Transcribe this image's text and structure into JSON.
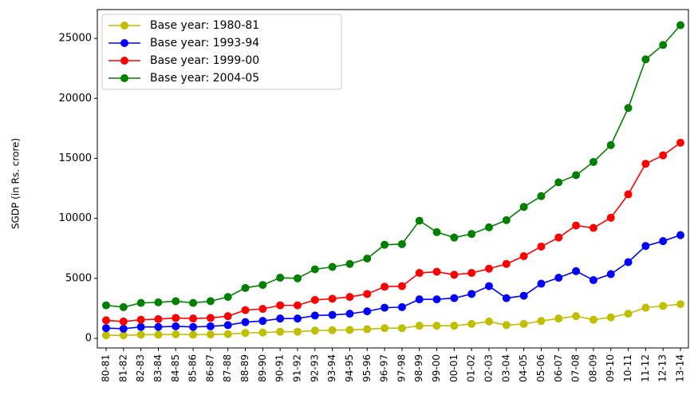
{
  "chart_data": {
    "type": "line",
    "ylabel": "SGDP (in Rs. crore)",
    "categories": [
      "80-81",
      "81-82",
      "82-83",
      "83-84",
      "84-85",
      "85-86",
      "86-87",
      "87-88",
      "88-89",
      "89-90",
      "90-91",
      "91-92",
      "92-93",
      "93-94",
      "94-95",
      "95-96",
      "96-97",
      "97-98",
      "98-99",
      "99-00",
      "00-01",
      "01-02",
      "02-03",
      "03-04",
      "04-05",
      "05-06",
      "06-07",
      "07-08",
      "08-09",
      "09-10",
      "10-11",
      "11-12",
      "12-13",
      "13-14"
    ],
    "series": [
      {
        "name": "Base year: 1980-81",
        "color": "#bfbf00",
        "values": [
          250,
          250,
          300,
          300,
          330,
          300,
          320,
          350,
          450,
          480,
          550,
          550,
          650,
          680,
          700,
          760,
          850,
          850,
          1050,
          1050,
          1050,
          1200,
          1400,
          1100,
          1200,
          1450,
          1650,
          1850,
          1550,
          1750,
          2050,
          2550,
          2700,
          2850
        ]
      },
      {
        "name": "Base year: 1993-94",
        "color": "#0000ff",
        "values": [
          850,
          800,
          950,
          950,
          1000,
          950,
          1000,
          1100,
          1350,
          1450,
          1650,
          1650,
          1900,
          1950,
          2050,
          2250,
          2550,
          2600,
          3250,
          3250,
          3350,
          3700,
          4350,
          3350,
          3550,
          4550,
          5050,
          5600,
          4850,
          5350,
          6350,
          7700,
          8100,
          8600
        ]
      },
      {
        "name": "Base year: 1999-00",
        "color": "#ff0000",
        "values": [
          1500,
          1400,
          1550,
          1600,
          1700,
          1650,
          1700,
          1850,
          2350,
          2450,
          2750,
          2750,
          3200,
          3300,
          3450,
          3700,
          4300,
          4350,
          5450,
          5550,
          5300,
          5450,
          5800,
          6200,
          6850,
          7650,
          8400,
          9400,
          9200,
          10050,
          12000,
          14550,
          15250,
          16300
        ]
      },
      {
        "name": "Base year: 2004-05",
        "color": "#008000",
        "values": [
          2750,
          2600,
          2950,
          3000,
          3100,
          2950,
          3100,
          3450,
          4200,
          4450,
          5050,
          5000,
          5750,
          5950,
          6200,
          6650,
          7800,
          7850,
          9800,
          8850,
          8400,
          8700,
          9250,
          9850,
          10950,
          11850,
          13000,
          13600,
          14700,
          16100,
          19200,
          23250,
          24450,
          26100
        ]
      }
    ],
    "ylim": [
      -800,
      27400
    ],
    "yticks": [
      0,
      5000,
      10000,
      15000,
      20000,
      25000
    ],
    "legend": "upper left",
    "grid": false
  }
}
